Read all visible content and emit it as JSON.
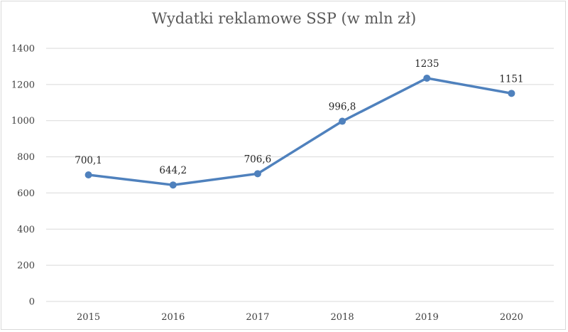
{
  "chart_data": {
    "type": "line",
    "title": "Wydatki reklamowe SSP (w mln zł)",
    "xlabel": "",
    "ylabel": "",
    "categories": [
      "2015",
      "2016",
      "2017",
      "2018",
      "2019",
      "2020"
    ],
    "series": [
      {
        "values": [
          700.1,
          644.2,
          706.6,
          996.8,
          1235,
          1151
        ],
        "value_labels": [
          "700,1",
          "644,2",
          "706,6",
          "996,8",
          "1235",
          "1151"
        ],
        "color": "#4f81bd"
      }
    ],
    "ylim": [
      0,
      1400
    ],
    "yticks": [
      "0",
      "200",
      "400",
      "600",
      "800",
      "1000",
      "1200",
      "1400"
    ],
    "grid": true,
    "legend": "none",
    "colors": {
      "line": "#4f81bd",
      "grid": "#d9d9d9"
    }
  }
}
